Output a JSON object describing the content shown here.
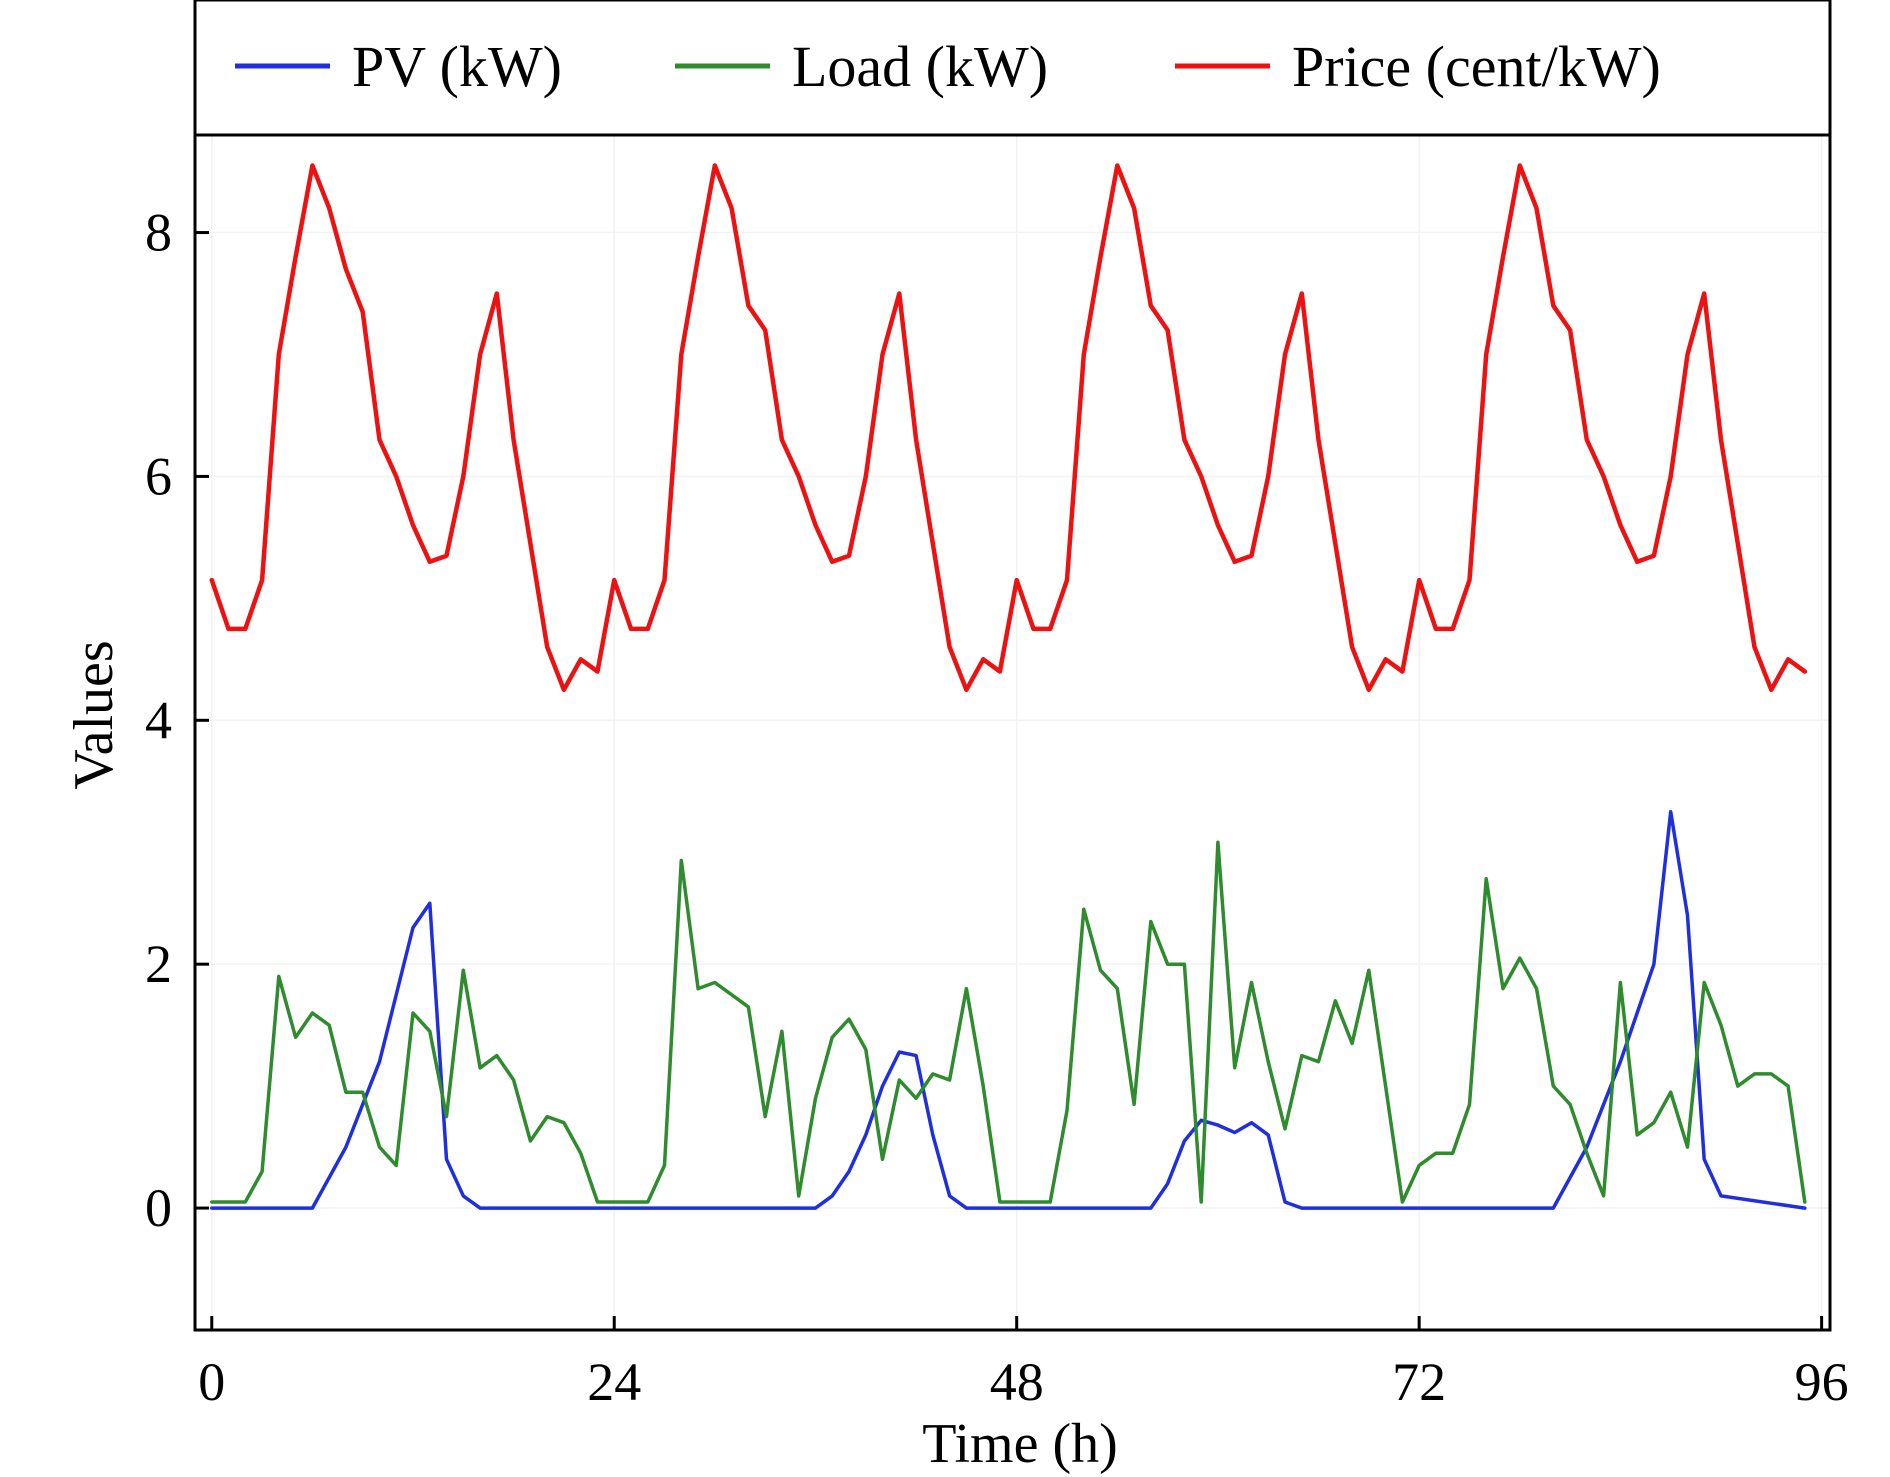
{
  "chart_data": {
    "type": "line",
    "title": "",
    "xlabel": "Time (h)",
    "ylabel": "Values",
    "xlim": [
      -1,
      96.5
    ],
    "ylim": [
      -1,
      8.8
    ],
    "xticks": [
      0,
      24,
      48,
      72,
      96
    ],
    "yticks": [
      0,
      2,
      4,
      6,
      8
    ],
    "grid": true,
    "legend_position": "top",
    "series": [
      {
        "name": "PV (kW)",
        "color": "#1f2ee0",
        "x": [
          0,
          6,
          8,
          10,
          12,
          13,
          14,
          15,
          16,
          36,
          37,
          38,
          39,
          40,
          41,
          42,
          43,
          44,
          45,
          48,
          56,
          57,
          58,
          59,
          60,
          61,
          62,
          63,
          64,
          65,
          66,
          80,
          82,
          84,
          86,
          87,
          88,
          89,
          90,
          95
        ],
        "y": [
          0,
          0,
          0.5,
          1.2,
          2.3,
          2.5,
          0.4,
          0.1,
          0,
          0,
          0.1,
          0.3,
          0.6,
          1.0,
          1.28,
          1.25,
          0.6,
          0.1,
          0,
          0,
          0,
          0.2,
          0.55,
          0.72,
          0.68,
          0.62,
          0.7,
          0.6,
          0.05,
          0,
          0,
          0,
          0.5,
          1.2,
          2.0,
          3.25,
          2.4,
          0.4,
          0.1,
          0
        ]
      },
      {
        "name": "Load (kW)",
        "color": "#2e8b2e",
        "x": [
          0,
          1,
          2,
          3,
          4,
          5,
          6,
          7,
          8,
          9,
          10,
          11,
          12,
          13,
          14,
          15,
          16,
          17,
          18,
          19,
          20,
          21,
          22,
          23,
          24,
          25,
          26,
          27,
          28,
          29,
          30,
          31,
          32,
          33,
          34,
          35,
          36,
          37,
          38,
          39,
          40,
          41,
          42,
          43,
          44,
          45,
          46,
          47,
          48,
          49,
          50,
          51,
          52,
          53,
          54,
          55,
          56,
          57,
          58,
          59,
          60,
          61,
          62,
          63,
          64,
          65,
          66,
          67,
          68,
          69,
          70,
          71,
          72,
          73,
          74,
          75,
          76,
          77,
          78,
          79,
          80,
          81,
          82,
          83,
          84,
          85,
          86,
          87,
          88,
          89,
          90,
          91,
          92,
          93,
          94,
          95
        ],
        "y": [
          0.05,
          0.05,
          0.05,
          0.3,
          1.9,
          1.4,
          1.6,
          1.5,
          0.95,
          0.95,
          0.5,
          0.35,
          1.6,
          1.45,
          0.75,
          1.95,
          1.15,
          1.25,
          1.05,
          0.55,
          0.75,
          0.7,
          0.45,
          0.05,
          0.05,
          0.05,
          0.05,
          0.35,
          2.85,
          1.8,
          1.85,
          1.75,
          1.65,
          0.75,
          1.45,
          0.1,
          0.9,
          1.4,
          1.55,
          1.3,
          0.4,
          1.05,
          0.9,
          1.1,
          1.05,
          1.8,
          1.0,
          0.05,
          0.05,
          0.05,
          0.05,
          0.8,
          2.45,
          1.95,
          1.8,
          0.85,
          2.35,
          2.0,
          2.0,
          0.05,
          3.0,
          1.15,
          1.85,
          1.2,
          0.65,
          1.25,
          1.2,
          1.7,
          1.35,
          1.95,
          1.0,
          0.05,
          0.35,
          0.45,
          0.45,
          0.85,
          2.7,
          1.8,
          2.05,
          1.8,
          1.0,
          0.85,
          0.45,
          0.1,
          1.85,
          0.6,
          0.7,
          0.95,
          0.5,
          1.85,
          1.5,
          1.0,
          1.1,
          1.1,
          1.0,
          0.05
        ]
      },
      {
        "name": "Price (cent/kW)",
        "color": "#ee1111",
        "x": [
          0,
          1,
          2,
          3,
          4,
          5,
          6,
          7,
          8,
          9,
          10,
          11,
          12,
          13,
          14,
          15,
          16,
          17,
          18,
          19,
          20,
          21,
          22,
          23,
          24,
          25,
          26,
          27,
          28,
          29,
          30,
          31,
          32,
          33,
          34,
          35,
          36,
          37,
          38,
          39,
          40,
          41,
          42,
          43,
          44,
          45,
          46,
          47,
          48,
          49,
          50,
          51,
          52,
          53,
          54,
          55,
          56,
          57,
          58,
          59,
          60,
          61,
          62,
          63,
          64,
          65,
          66,
          67,
          68,
          69,
          70,
          71,
          72,
          73,
          74,
          75,
          76,
          77,
          78,
          79,
          80,
          81,
          82,
          83,
          84,
          85,
          86,
          87,
          88,
          89,
          90,
          91,
          92,
          93,
          94,
          95
        ],
        "y": [
          5.15,
          4.75,
          4.75,
          5.15,
          7.0,
          7.8,
          8.55,
          8.2,
          7.7,
          7.35,
          6.3,
          6.0,
          5.6,
          5.3,
          5.35,
          6.0,
          7.0,
          7.5,
          6.3,
          5.45,
          4.6,
          4.25,
          4.5,
          4.4,
          5.15,
          4.75,
          4.75,
          5.15,
          7.0,
          7.8,
          8.55,
          8.2,
          7.4,
          7.2,
          6.3,
          6.0,
          5.6,
          5.3,
          5.35,
          6.0,
          7.0,
          7.5,
          6.3,
          5.45,
          4.6,
          4.25,
          4.5,
          4.4,
          5.15,
          4.75,
          4.75,
          5.15,
          7.0,
          7.8,
          8.55,
          8.2,
          7.4,
          7.2,
          6.3,
          6.0,
          5.6,
          5.3,
          5.35,
          6.0,
          7.0,
          7.5,
          6.3,
          5.45,
          4.6,
          4.25,
          4.5,
          4.4,
          5.15,
          4.75,
          4.75,
          5.15,
          7.0,
          7.8,
          8.55,
          8.2,
          7.4,
          7.2,
          6.3,
          6.0,
          5.6,
          5.3,
          5.35,
          6.0,
          7.0,
          7.5,
          6.3,
          5.45,
          4.6,
          4.25,
          4.5,
          4.4
        ]
      }
    ]
  }
}
